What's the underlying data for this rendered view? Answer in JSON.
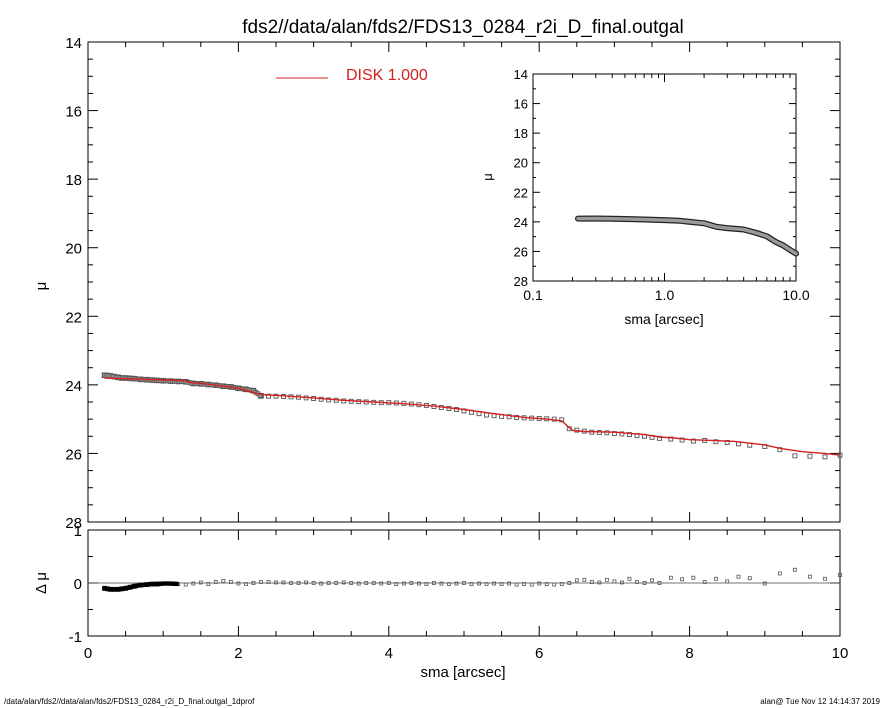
{
  "footer": {
    "left": "/data/alan/fds2//data/alan/fds2/FDS13_0284_r2i_D_final.outgal_1dprof",
    "right": "alan@  Tue Nov 12 14:14:37 2019"
  },
  "colors": {
    "model": "#d42020",
    "data": "#555555",
    "axis": "#000000"
  },
  "chart_data": [
    {
      "id": "main",
      "type": "scatter",
      "title": "fds2//data/alan/fds2/FDS13_0284_r2i_D_final.outgal",
      "ylabel": "μ",
      "xlim": [
        0,
        10
      ],
      "ylim": [
        28,
        14
      ],
      "y_inverted": true,
      "yticks": [
        14,
        16,
        18,
        20,
        22,
        24,
        26,
        28
      ],
      "legend": {
        "label": "DISK  1.000",
        "placement": "top-center"
      },
      "series": [
        {
          "role": "data",
          "marker": "square",
          "x": [
            0.22,
            0.26,
            0.3,
            0.35,
            0.4,
            0.45,
            0.5,
            0.56,
            0.62,
            0.7,
            0.78,
            0.85,
            0.92,
            1.0,
            1.1,
            1.2,
            1.3,
            1.4,
            1.5,
            1.6,
            1.7,
            1.8,
            1.9,
            2.0,
            2.1,
            2.2,
            2.3,
            2.4,
            2.5,
            2.6,
            2.7,
            2.8,
            2.9,
            3.0,
            3.1,
            3.2,
            3.3,
            3.4,
            3.5,
            3.6,
            3.7,
            3.8,
            3.9,
            4.0,
            4.1,
            4.2,
            4.3,
            4.4,
            4.5,
            4.6,
            4.7,
            4.8,
            4.9,
            5.0,
            5.1,
            5.2,
            5.3,
            5.4,
            5.5,
            5.6,
            5.7,
            5.8,
            5.9,
            6.0,
            6.1,
            6.2,
            6.3,
            6.4,
            6.5,
            6.6,
            6.7,
            6.8,
            6.9,
            7.0,
            7.1,
            7.2,
            7.3,
            7.4,
            7.5,
            7.6,
            7.75,
            7.9,
            8.05,
            8.2,
            8.35,
            8.5,
            8.65,
            8.8,
            9.0,
            9.2,
            9.4,
            9.6,
            9.8,
            10.0
          ],
          "y": [
            23.72,
            23.73,
            23.74,
            23.76,
            23.78,
            23.8,
            23.8,
            23.81,
            23.82,
            23.84,
            23.85,
            23.86,
            23.87,
            23.88,
            23.89,
            23.9,
            23.91,
            23.96,
            23.97,
            23.99,
            24.01,
            24.04,
            24.06,
            24.1,
            24.13,
            24.17,
            24.32,
            24.33,
            24.33,
            24.34,
            24.35,
            24.36,
            24.38,
            24.4,
            24.42,
            24.44,
            24.45,
            24.47,
            24.48,
            24.49,
            24.5,
            24.51,
            24.52,
            24.52,
            24.53,
            24.54,
            24.56,
            24.58,
            24.6,
            24.63,
            24.66,
            24.69,
            24.72,
            24.76,
            24.8,
            24.84,
            24.88,
            24.9,
            24.92,
            24.93,
            24.95,
            24.96,
            24.97,
            24.98,
            24.99,
            25.0,
            25.02,
            25.28,
            25.32,
            25.35,
            25.38,
            25.39,
            25.4,
            25.42,
            25.43,
            25.45,
            25.48,
            25.5,
            25.53,
            25.56,
            25.58,
            25.61,
            25.64,
            25.62,
            25.66,
            25.68,
            25.72,
            25.76,
            25.8,
            25.89,
            26.07,
            26.08,
            26.1,
            26.05
          ]
        },
        {
          "role": "model",
          "name": "DISK  1.000",
          "x": [
            0.22,
            0.5,
            1.0,
            1.3,
            1.35,
            1.6,
            2.0,
            2.3,
            2.6,
            3.0,
            3.4,
            3.8,
            4.2,
            4.6,
            5.0,
            5.4,
            5.8,
            6.1,
            6.3,
            6.4,
            6.45,
            6.6,
            7.0,
            7.4,
            7.6,
            7.8,
            8.0,
            8.3,
            8.6,
            9.0,
            9.2,
            9.5,
            9.8,
            10.0
          ],
          "y": [
            23.8,
            23.82,
            23.86,
            23.88,
            23.93,
            23.98,
            24.1,
            24.28,
            24.32,
            24.38,
            24.45,
            24.5,
            24.55,
            24.62,
            24.72,
            24.84,
            24.95,
            25.0,
            25.05,
            25.25,
            25.33,
            25.36,
            25.38,
            25.45,
            25.52,
            25.55,
            25.6,
            25.62,
            25.65,
            25.75,
            25.85,
            25.95,
            26.0,
            26.05
          ]
        }
      ]
    },
    {
      "id": "inset",
      "type": "scatter",
      "xlabel": "sma [arcsec]",
      "ylabel": "μ",
      "xscale": "log",
      "xlim": [
        0.1,
        10.0
      ],
      "xticks": [
        "0.1",
        "1.0",
        "10.0"
      ],
      "ylim": [
        28,
        14
      ],
      "y_inverted": true,
      "yticks": [
        14,
        16,
        18,
        20,
        22,
        24,
        26,
        28
      ],
      "series": [
        {
          "role": "data",
          "x": [
            0.22,
            0.3,
            0.4,
            0.5,
            0.7,
            1.0,
            1.3,
            1.5,
            2.0,
            2.5,
            3.0,
            4.0,
            5.0,
            6.0,
            7.0,
            8.0,
            9.0,
            10.0
          ],
          "y": [
            23.78,
            23.77,
            23.79,
            23.81,
            23.84,
            23.88,
            23.92,
            23.98,
            24.1,
            24.34,
            24.42,
            24.52,
            24.75,
            24.98,
            25.35,
            25.6,
            25.9,
            26.15
          ]
        }
      ]
    },
    {
      "id": "residual",
      "type": "scatter",
      "xlabel": "sma [arcsec]",
      "ylabel": "Δ μ",
      "xlim": [
        0,
        10
      ],
      "xticks": [
        0,
        2,
        4,
        6,
        8,
        10
      ],
      "ylim": [
        -1,
        1
      ],
      "yticks": [
        -1,
        0,
        1
      ],
      "series": [
        {
          "role": "residual",
          "x": [
            0.22,
            0.26,
            0.3,
            0.35,
            0.4,
            0.45,
            0.5,
            0.56,
            0.62,
            0.7,
            0.78,
            0.85,
            0.92,
            1.0,
            1.1,
            1.2,
            1.3,
            1.4,
            1.5,
            1.6,
            1.7,
            1.8,
            1.9,
            2.0,
            2.1,
            2.2,
            2.3,
            2.4,
            2.5,
            2.6,
            2.7,
            2.8,
            2.9,
            3.0,
            3.1,
            3.2,
            3.3,
            3.4,
            3.5,
            3.6,
            3.7,
            3.8,
            3.9,
            4.0,
            4.1,
            4.2,
            4.3,
            4.4,
            4.5,
            4.6,
            4.7,
            4.8,
            4.9,
            5.0,
            5.1,
            5.2,
            5.3,
            5.4,
            5.5,
            5.6,
            5.7,
            5.8,
            5.9,
            6.0,
            6.1,
            6.2,
            6.3,
            6.4,
            6.5,
            6.6,
            6.7,
            6.8,
            6.9,
            7.0,
            7.1,
            7.2,
            7.3,
            7.4,
            7.5,
            7.6,
            7.75,
            7.9,
            8.05,
            8.2,
            8.35,
            8.5,
            8.65,
            8.8,
            9.0,
            9.2,
            9.4,
            9.6,
            9.8,
            10.0
          ],
          "y": [
            -0.1,
            -0.11,
            -0.12,
            -0.12,
            -0.12,
            -0.11,
            -0.1,
            -0.08,
            -0.06,
            -0.04,
            -0.03,
            -0.02,
            -0.02,
            -0.01,
            -0.01,
            -0.02,
            -0.03,
            -0.01,
            0.01,
            -0.02,
            0.02,
            0.04,
            0.02,
            -0.01,
            -0.02,
            0.0,
            0.02,
            0.02,
            0.01,
            0.01,
            0.0,
            0.0,
            0.01,
            0.0,
            -0.01,
            0.0,
            0.0,
            0.01,
            0.0,
            -0.01,
            0.0,
            0.0,
            -0.01,
            0.0,
            -0.02,
            -0.01,
            0.0,
            -0.01,
            -0.02,
            0.0,
            -0.01,
            -0.02,
            -0.01,
            0.0,
            -0.02,
            -0.01,
            -0.02,
            -0.01,
            -0.02,
            -0.01,
            -0.03,
            -0.02,
            -0.03,
            -0.01,
            -0.02,
            -0.03,
            -0.02,
            0.0,
            0.05,
            0.06,
            0.02,
            0.01,
            0.06,
            0.03,
            0.01,
            0.08,
            0.02,
            0.0,
            0.05,
            0.0,
            0.1,
            0.07,
            0.1,
            0.02,
            0.08,
            0.03,
            0.12,
            0.09,
            -0.01,
            0.18,
            0.25,
            0.12,
            0.08,
            0.15
          ]
        }
      ]
    }
  ]
}
